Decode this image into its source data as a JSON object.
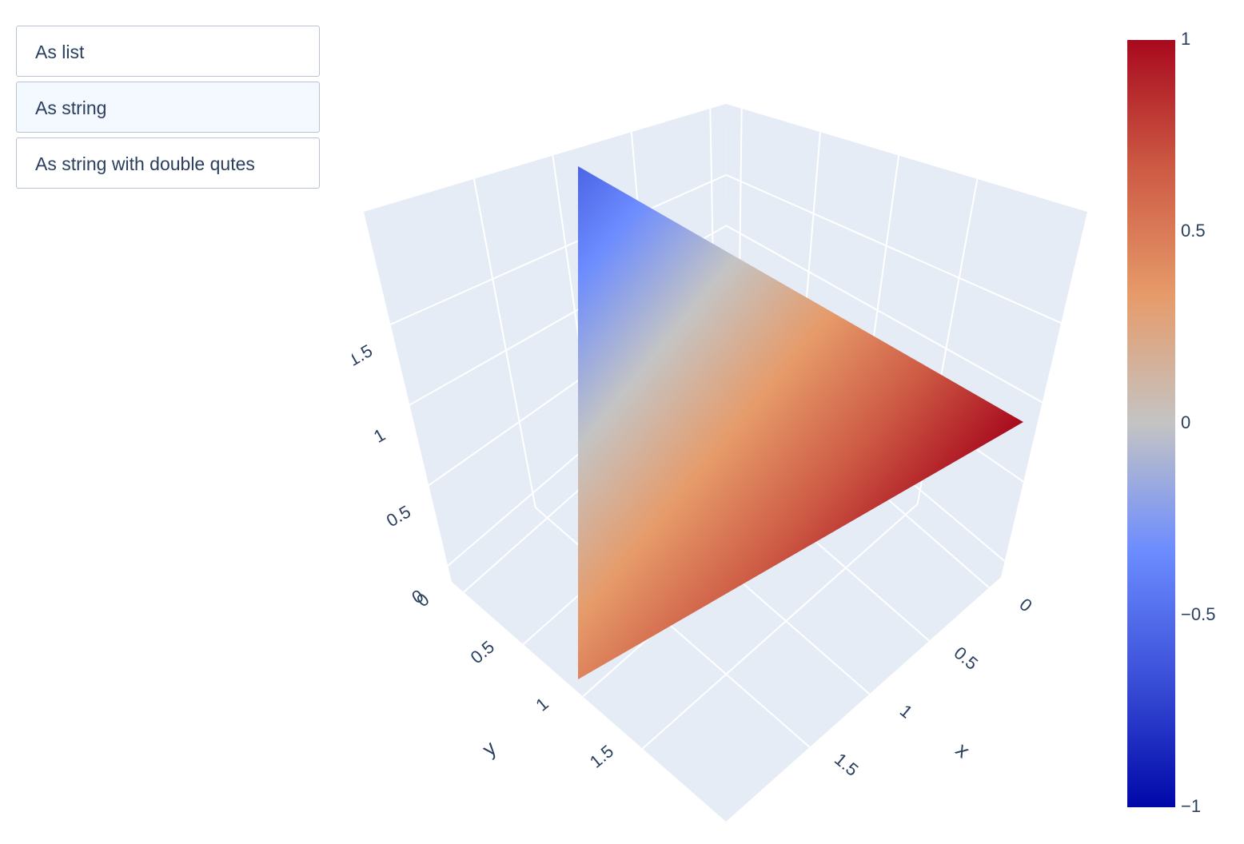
{
  "buttons": [
    "As list",
    "As string",
    "As string with double qutes"
  ],
  "chart_data": {
    "type": "mesh3d",
    "intensity": [
      -0.55,
      1,
      0.45
    ],
    "colors": [
      "#0008a8",
      "#3a4fd8",
      "#6c8cff",
      "#c4c4c4",
      "#e69b6a",
      "#cd5a44",
      "#a80a1e"
    ],
    "xaxis_title": "x",
    "yaxis_title": "y",
    "xlim": [
      -0.1,
      2.2
    ],
    "ylim": [
      -0.1,
      2.2
    ],
    "zlim": [
      -0.1,
      2.2
    ],
    "xticks": [
      0,
      0.5,
      1,
      1.5
    ],
    "yticks": [
      0,
      0.5,
      1,
      1.5
    ],
    "zticks": [
      0,
      0.5,
      1,
      1.5
    ],
    "grid": true,
    "clim": [
      -1,
      1
    ],
    "cticks": [
      1,
      0.5,
      0,
      {
        "value": -0.5,
        "label": "−0.5"
      },
      {
        "value": -1,
        "label": "−1"
      }
    ]
  }
}
